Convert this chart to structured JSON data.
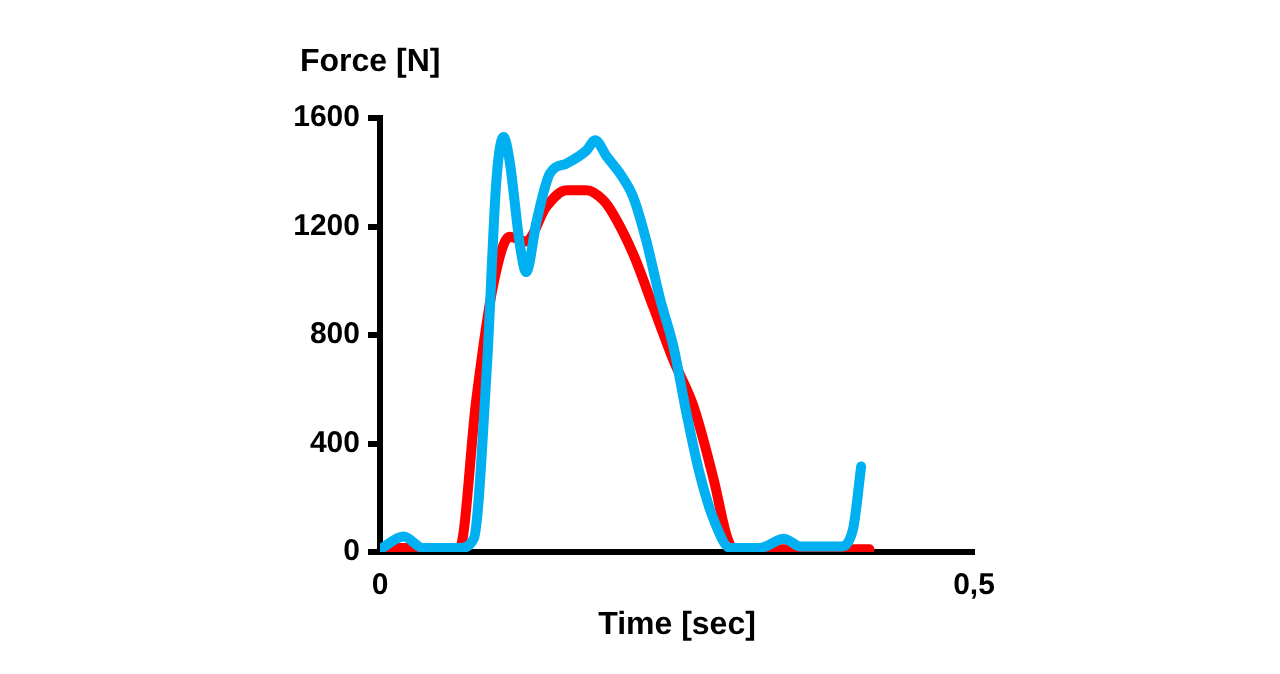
{
  "chart_data": {
    "type": "line",
    "xlabel": "Time [sec]",
    "ylabel": "Force [N]",
    "xlim": [
      0,
      0.5
    ],
    "xticks": [
      0,
      {
        "value": 0.5,
        "label": "0,5"
      }
    ],
    "ylim": [
      0,
      1600
    ],
    "yticks": [
      0,
      400,
      800,
      1200,
      1600
    ],
    "grid": false,
    "legend": false,
    "marker": "none",
    "line_style": "solid",
    "series": [
      {
        "color": "#00b0f0",
        "x": [
          0,
          0.02,
          0.036,
          0.067,
          0.079,
          0.09,
          0.098,
          0.104,
          0.109,
          0.118,
          0.123,
          0.132,
          0.143,
          0.157,
          0.174,
          0.181,
          0.191,
          0.202,
          0.213,
          0.224,
          0.236,
          0.247,
          0.258,
          0.269,
          0.281,
          0.295,
          0.32,
          0.34,
          0.354,
          0.387,
          0.398,
          0.405
        ],
        "values": [
          10,
          57,
          15,
          15,
          50,
          683,
          1371,
          1530,
          1444,
          1125,
          1032,
          1223,
          1395,
          1432,
          1481,
          1518,
          1457,
          1395,
          1310,
          1150,
          929,
          757,
          511,
          290,
          118,
          15,
          15,
          49,
          20,
          20,
          81,
          315
        ]
      },
      {
        "color": "#ff0000",
        "x": [
          0,
          0.067,
          0.081,
          0.095,
          0.109,
          0.123,
          0.14,
          0.157,
          0.174,
          0.188,
          0.196,
          0.213,
          0.23,
          0.247,
          0.264,
          0.281,
          0.292,
          0.298,
          0.412
        ],
        "values": [
          15,
          15,
          560,
          978,
          1162,
          1145,
          1273,
          1334,
          1334,
          1297,
          1248,
          1100,
          904,
          707,
          536,
          265,
          57,
          10,
          10
        ]
      }
    ]
  }
}
